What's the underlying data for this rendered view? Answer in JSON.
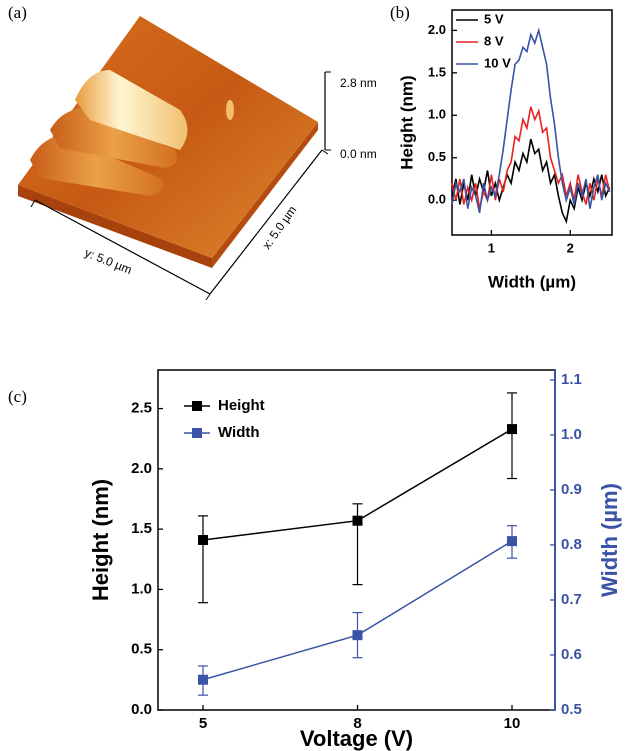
{
  "panel_a": {
    "panel_label": "(a)",
    "z_top": "2.8 nm",
    "z_bottom": "0.0 nm",
    "y_axis": "y: 5.0 µm",
    "x_axis": "x: 5.0 µm"
  },
  "chart_data": [
    {
      "type": "line",
      "panel_label": "(b)",
      "xlabel": "Width (µm)",
      "ylabel": "Height (nm)",
      "x": [
        0.5,
        0.55,
        0.6,
        0.65,
        0.7,
        0.75,
        0.8,
        0.85,
        0.9,
        0.95,
        1.0,
        1.05,
        1.1,
        1.15,
        1.2,
        1.25,
        1.3,
        1.35,
        1.4,
        1.45,
        1.5,
        1.55,
        1.6,
        1.65,
        1.7,
        1.75,
        1.8,
        1.85,
        1.9,
        1.95,
        2.0,
        2.05,
        2.1,
        2.15,
        2.2,
        2.25,
        2.3,
        2.35,
        2.4,
        2.45,
        2.5
      ],
      "series": [
        {
          "name": "5 V",
          "color": "#000000",
          "values": [
            0.05,
            0.25,
            -0.05,
            0.2,
            0.0,
            0.3,
            0.05,
            0.25,
            0.1,
            0.35,
            0.05,
            0.2,
            0.0,
            0.15,
            0.3,
            0.2,
            0.45,
            0.35,
            0.55,
            0.45,
            0.72,
            0.55,
            0.6,
            0.35,
            0.45,
            0.2,
            0.3,
            0.05,
            -0.15,
            -0.25,
            0.0,
            -0.1,
            0.15,
            0.0,
            0.2,
            0.05,
            0.25,
            0.1,
            0.3,
            0.05,
            0.15
          ]
        },
        {
          "name": "8 V",
          "color": "#e8231f",
          "values": [
            0.2,
            0.0,
            0.25,
            -0.05,
            0.15,
            0.0,
            0.2,
            -0.1,
            0.1,
            0.0,
            0.3,
            0.0,
            0.25,
            0.1,
            0.35,
            0.45,
            0.75,
            0.7,
            0.95,
            0.85,
            1.1,
            0.95,
            1.05,
            0.8,
            0.85,
            0.5,
            0.35,
            0.2,
            0.3,
            0.05,
            0.2,
            0.0,
            0.3,
            0.1,
            -0.05,
            0.2,
            0.0,
            0.25,
            0.05,
            0.3,
            0.1
          ]
        },
        {
          "name": "10 V",
          "color": "#3a53a4",
          "values": [
            -0.05,
            0.2,
            0.1,
            0.25,
            -0.1,
            0.15,
            0.05,
            -0.15,
            0.2,
            0.0,
            0.15,
            0.05,
            0.3,
            0.6,
            0.95,
            1.3,
            1.6,
            1.65,
            1.8,
            1.75,
            1.95,
            1.85,
            2.0,
            1.8,
            1.6,
            1.2,
            0.9,
            0.5,
            0.2,
            0.0,
            0.15,
            -0.05,
            0.2,
            0.05,
            0.25,
            -0.1,
            0.15,
            0.3,
            0.0,
            0.2,
            0.1
          ]
        }
      ],
      "xlim": [
        0.5,
        2.53
      ],
      "xticks": [
        1,
        2
      ],
      "ylim": [
        -0.41,
        2.24
      ],
      "yticks": [
        {
          "value": 0,
          "label": "0.0"
        },
        0.5,
        {
          "value": 1,
          "label": "1.0"
        },
        1.5,
        {
          "value": 2,
          "label": "2.0"
        }
      ],
      "legend": "upper left"
    },
    {
      "type": "line",
      "panel_label": "(c)",
      "xlabel": "Voltage (V)",
      "ylabel": "Height (nm)",
      "y2label": "Width (µm)",
      "categories": [
        "5",
        "8",
        "10"
      ],
      "series": [
        {
          "name": "Height",
          "color": "#000000",
          "axis": "y",
          "values": [
            1.41,
            1.57,
            2.33
          ],
          "error_upper": [
            0.2,
            0.14,
            0.3
          ],
          "error_lower": [
            0.52,
            0.53,
            0.41
          ]
        },
        {
          "name": "Width",
          "color": "#3a53a4",
          "axis": "y2",
          "values": [
            0.555,
            0.636,
            0.807
          ],
          "error_upper": [
            0.025,
            0.041,
            0.028
          ],
          "error_lower": [
            0.028,
            0.041,
            0.031
          ]
        }
      ],
      "ylim": [
        0,
        2.82
      ],
      "yticks": [
        {
          "value": 0,
          "label": "0.0"
        },
        0.5,
        {
          "value": 1,
          "label": "1.0"
        },
        1.5,
        {
          "value": 2,
          "label": "2.0"
        },
        2.5
      ],
      "y2lim": [
        0.5,
        1.118
      ],
      "y2ticks": [
        0.5,
        0.6,
        0.7,
        0.8,
        0.9,
        {
          "value": 1,
          "label": "1.0"
        },
        1.1
      ],
      "legend": "upper left"
    }
  ]
}
